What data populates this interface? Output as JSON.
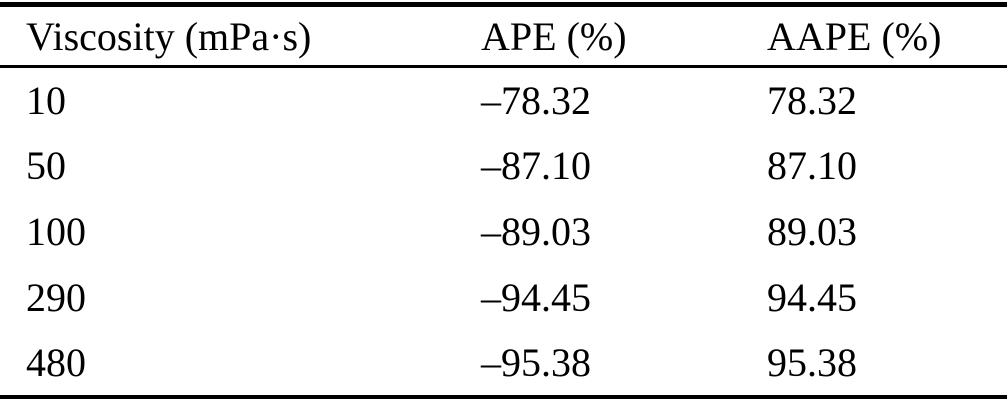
{
  "table": {
    "columns": [
      "Viscosity (mPa·s)",
      "APE (%)",
      "AAPE (%)"
    ],
    "rows": [
      [
        "10",
        "–78.32",
        "78.32"
      ],
      [
        "50",
        "–87.10",
        "87.10"
      ],
      [
        "100",
        "–89.03",
        "89.03"
      ],
      [
        "290",
        "–94.45",
        "94.45"
      ],
      [
        "480",
        "–95.38",
        "95.38"
      ]
    ]
  },
  "colors": {
    "text": "#000000",
    "background": "#ffffff",
    "rule": "#000000"
  },
  "chart_data": {
    "type": "table",
    "title": "",
    "categories": [
      10,
      50,
      100,
      290,
      480
    ],
    "series": [
      {
        "name": "APE (%)",
        "values": [
          -78.32,
          -87.1,
          -89.03,
          -94.45,
          -95.38
        ]
      },
      {
        "name": "AAPE (%)",
        "values": [
          78.32,
          87.1,
          89.03,
          94.45,
          95.38
        ]
      }
    ],
    "xlabel": "Viscosity (mPa·s)"
  }
}
